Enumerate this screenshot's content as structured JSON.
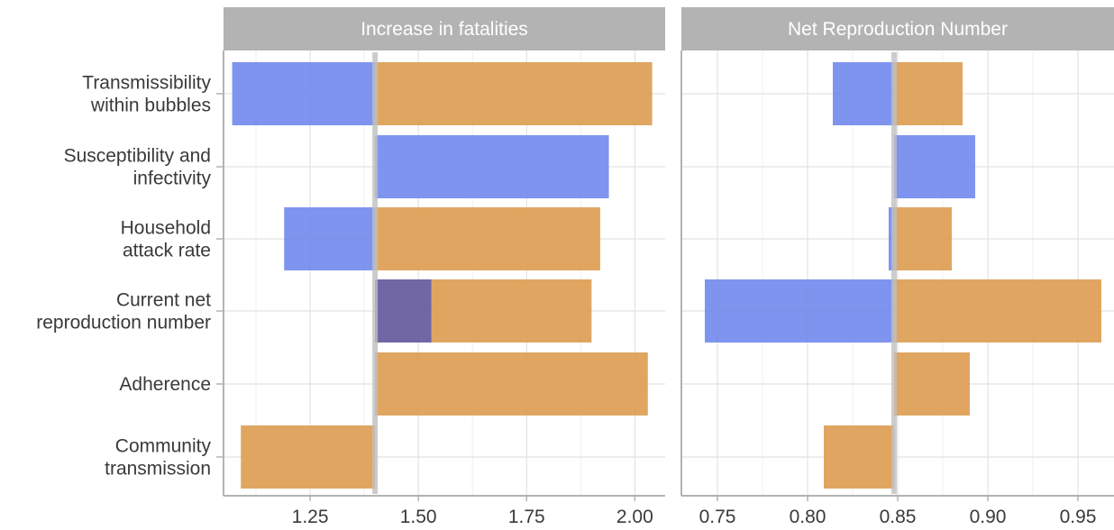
{
  "colors": {
    "lower": "#6d85ec",
    "higher": "#dc9a4b",
    "overlap": "#6a63a8",
    "strip_bg": "#b3b3b3",
    "grid": "#e2e2e2",
    "baseline": "#bfbfbf",
    "axis": "#b3b3b3"
  },
  "chart_data": [
    {
      "type": "bar",
      "orientation": "horizontal",
      "panel_title": "Increase in fatalities",
      "baseline": 1.4,
      "xlim": [
        1.05,
        2.07
      ],
      "xticks": [
        1.25,
        1.5,
        1.75,
        2.0
      ],
      "xtick_labels": [
        "1.25",
        "1.50",
        "1.75",
        "2.00"
      ],
      "categories": [
        "Transmissibility within bubbles",
        "Susceptibility and infectivity",
        "Household attack rate",
        "Current net reproduction number",
        "Adherence",
        "Community transmission"
      ],
      "bars": [
        {
          "category": "Transmissibility within bubbles",
          "blue": [
            1.07,
            1.4
          ],
          "orange": [
            1.4,
            2.04
          ]
        },
        {
          "category": "Susceptibility and infectivity",
          "blue": [
            1.4,
            1.94
          ],
          "orange": null
        },
        {
          "category": "Household attack rate",
          "blue": [
            1.19,
            1.4
          ],
          "orange": [
            1.4,
            1.92
          ]
        },
        {
          "category": "Current net reproduction number",
          "blue": [
            1.4,
            1.53
          ],
          "orange": [
            1.4,
            1.9
          ]
        },
        {
          "category": "Adherence",
          "blue": null,
          "orange": [
            1.4,
            2.03
          ]
        },
        {
          "category": "Community transmission",
          "blue": null,
          "orange": [
            1.09,
            1.4
          ]
        }
      ],
      "grid": true
    },
    {
      "type": "bar",
      "orientation": "horizontal",
      "panel_title": "Net Reproduction Number",
      "baseline": 0.848,
      "xlim": [
        0.73,
        0.97
      ],
      "xticks": [
        0.75,
        0.8,
        0.85,
        0.9,
        0.95
      ],
      "xtick_labels": [
        "0.75",
        "0.80",
        "0.85",
        "0.90",
        "0.95"
      ],
      "categories": [
        "Transmissibility within bubbles",
        "Susceptibility and infectivity",
        "Household attack rate",
        "Current net reproduction number",
        "Adherence",
        "Community transmission"
      ],
      "bars": [
        {
          "category": "Transmissibility within bubbles",
          "blue": [
            0.814,
            0.848
          ],
          "orange": [
            0.848,
            0.886
          ]
        },
        {
          "category": "Susceptibility and infectivity",
          "blue": [
            0.848,
            0.893
          ],
          "orange": null
        },
        {
          "category": "Household attack rate",
          "blue": [
            0.845,
            0.848
          ],
          "orange": [
            0.848,
            0.88
          ]
        },
        {
          "category": "Current net reproduction number",
          "blue": [
            0.743,
            0.848
          ],
          "orange": [
            0.848,
            0.963
          ]
        },
        {
          "category": "Adherence",
          "blue": null,
          "orange": [
            0.848,
            0.89
          ]
        },
        {
          "category": "Community transmission",
          "blue": null,
          "orange": [
            0.809,
            0.848
          ]
        }
      ],
      "grid": true
    }
  ],
  "y_labels": [
    [
      "Transmissibility",
      "within bubbles"
    ],
    [
      "Susceptibility and",
      "infectivity"
    ],
    [
      "Household",
      "attack rate"
    ],
    [
      "Current net",
      "reproduction number"
    ],
    [
      "Adherence"
    ],
    [
      "Community",
      "transmission"
    ]
  ]
}
